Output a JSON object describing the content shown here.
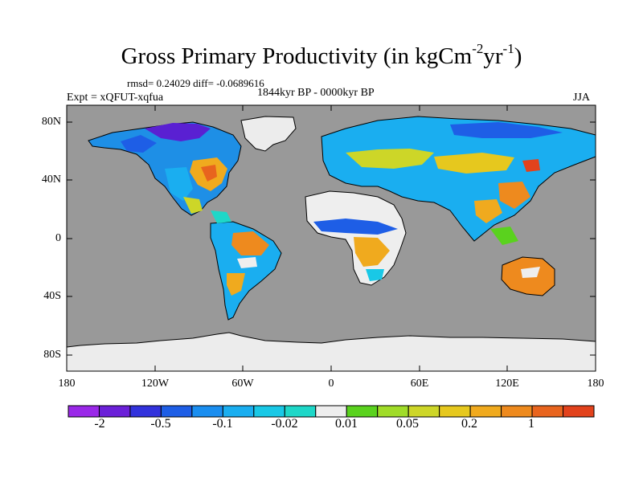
{
  "title": {
    "text": "Gross Primary Productivity (in kgCm",
    "sup1": "-2",
    "mid": "yr",
    "sup2": "-1",
    "end": ")"
  },
  "stats_line": "rmsd= 0.24029 diff= -0.0689616",
  "experiment_label": "Expt = xQFUT-xqfua",
  "period_label": "1844kyr BP - 0000kyr BP",
  "season_label": "JJA",
  "y_ticks": [
    "80N",
    "40N",
    "0",
    "40S",
    "80S"
  ],
  "x_ticks": [
    "180",
    "120W",
    "60W",
    "0",
    "60E",
    "120E",
    "180"
  ],
  "colors": {
    "ocean": "#999999",
    "ice": "#ececec",
    "near_zero": "#eeeeee"
  },
  "colorbar": {
    "colors": [
      "#9a28e8",
      "#6b20d8",
      "#3232dc",
      "#1e5ee6",
      "#1a8ef0",
      "#1aaef0",
      "#19c8e6",
      "#1ed7c8",
      "#eeeeee",
      "#5ad21e",
      "#a0dc28",
      "#cdd628",
      "#e6c81e",
      "#f0aa1e",
      "#ee8a1e",
      "#e8641e",
      "#e2421c"
    ],
    "labels": [
      "-2",
      "-0.5",
      "-0.1",
      "-0.02",
      "0.01",
      "0.05",
      "0.2",
      "1"
    ]
  }
}
